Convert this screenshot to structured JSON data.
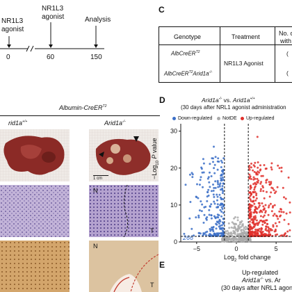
{
  "timeline": {
    "labels": [
      "NR1L3\nagonist",
      "NR1L3\nagonist",
      "Analysis"
    ],
    "label1_a": "NR1L3",
    "label1_b": "agonist",
    "label2_a": "NR1L3",
    "label2_b": "agonist",
    "label3": "Analysis",
    "ticks": [
      "0",
      "60",
      "150"
    ]
  },
  "panel_c": {
    "letter": "C",
    "headers": [
      "Genotype",
      "Treatment",
      "No. c",
      "with"
    ],
    "rows": [
      "AlbCreER",
      "AlbCreER Arid1a"
    ],
    "row1_text": "AlbCreER",
    "row1_sup": "T2",
    "row2_text_a": "AlbCreER",
    "row2_sup_a": "T2",
    "row2_text_b": "Arid1a",
    "row2_sup_b": "-/-",
    "treatment": "NR1L3 Agonist",
    "partial_col": "(",
    "partial_col2": "("
  },
  "panel_b": {
    "header": "Albumin-CreER",
    "header_sup": "T2",
    "col_left": "rid1a",
    "col_left_sup": "+/+",
    "col_right": "Arid1a",
    "col_right_sup": "-/-",
    "scale_bar": "1 cm",
    "label_n1": "N",
    "label_t1": "T",
    "label_n2": "N",
    "label_t2": "T"
  },
  "panel_d": {
    "letter": "D",
    "title_a": "Arid1a",
    "title_a_sup": "-/-",
    "title_vs": " vs. ",
    "title_b": "Arid1a",
    "title_b_sup": "+/+",
    "subtitle": "(30 days after NRL1 agonist administration",
    "legend": [
      "Down-regulated",
      "NotDE",
      "Up-regulated"
    ],
    "legend_colors": [
      "#3b6fc7",
      "#aaaaaa",
      "#e0302b"
    ],
    "count_label": "266",
    "ylabel": "−Log10 P value",
    "xlabel": "Log2 fold change"
  },
  "panel_e": {
    "letter": "E",
    "line1": "Up-regulated",
    "line2_a": "Arid1a",
    "line2_sup": "-/-",
    "line2_b": " vs. Ar",
    "line3": "(30 days after NRL1 agonist"
  },
  "chart_data": {
    "type": "scatter",
    "title": "Arid1a-/- vs. Arid1a+/+",
    "subtitle": "(30 days after NRL1 agonist administration",
    "xlabel": "Log2 fold change",
    "ylabel": "−Log10 P value",
    "xlim": [
      -7,
      7
    ],
    "ylim": [
      0,
      32
    ],
    "x_ticks": [
      -5,
      0,
      5
    ],
    "y_ticks": [
      0,
      10,
      20,
      30
    ],
    "thresholds": {
      "log2fc": [
        -1.5,
        1.5
      ],
      "p": 1.5
    },
    "grid": false,
    "legend_position": "top",
    "series": [
      {
        "name": "Down-regulated",
        "color": "#3b6fc7"
      },
      {
        "name": "NotDE",
        "color": "#aaaaaa"
      },
      {
        "name": "Up-regulated",
        "color": "#e0302b"
      }
    ],
    "annotation": "266"
  }
}
